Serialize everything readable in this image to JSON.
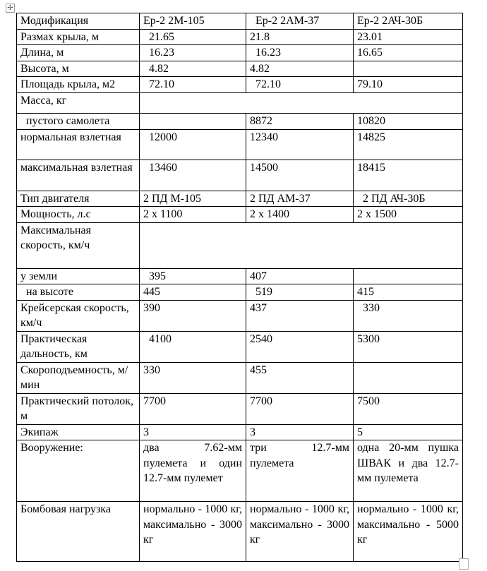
{
  "document": {
    "table": {
      "header": [
        "Модификация",
        "Ер-2 2М-105",
        "  Ер-2 2АМ-37",
        "Ер-2 2АЧ-30Б"
      ],
      "rows": [
        [
          "Размах крыла, м",
          "  21.65",
          "21.8",
          "23.01"
        ],
        [
          "Длина, м",
          "  16.23",
          "  16.23",
          "16.65"
        ],
        [
          "Высота, м",
          "  4.82",
          "4.82",
          ""
        ],
        [
          "Площадь крыла, м2",
          "  72.10",
          "  72.10",
          "79.10"
        ],
        [
          "Масса, кг"
        ],
        [
          "  пустого самолета",
          "",
          "8872",
          "10820"
        ],
        [
          "нормальная взлетная",
          "  12000",
          "12340",
          "14825"
        ],
        [
          "максимальная взлетная",
          "  13460",
          "14500",
          "18415"
        ],
        [
          "Тип двигателя",
          "2 ПД М-105",
          "2 ПД АМ-37",
          "  2 ПД АЧ-30Б"
        ],
        [
          "Мощность, л.с",
          "2 x 1100",
          "2 x 1400",
          "2 x 1500"
        ],
        [
          "Максимальная скорость, км/ч"
        ],
        [
          "у земли",
          "  395",
          "407",
          ""
        ],
        [
          "  на высоте",
          "445",
          "  519",
          "415"
        ],
        [
          "Крейсерская скорость, км/ч",
          "390",
          "437",
          "  330"
        ],
        [
          "Практическая дальность, км",
          "  4100",
          "2540",
          "5300"
        ],
        [
          "Скороподъемность, м/мин",
          "330",
          "455",
          ""
        ],
        [
          "Практический потолок, м",
          "7700",
          "7700",
          "7500"
        ],
        [
          "Экипаж",
          "3",
          "3",
          "5"
        ],
        [
          "Вооружение:",
          "два 7.62-мм пулемета и один 12.7-мм пулемет",
          "три 12.7-мм пулемета",
          "одна 20-мм пушка ШВАК и два 12.7-мм пулемета"
        ],
        [
          "Бомбовая нагрузка",
          "нормально - 1000 кг, максимально - 3000 кг",
          "нормально - 1000 кг, максимально - 3000 кг",
          "нормально - 1000 кг, максимально - 5000 кг"
        ]
      ]
    }
  }
}
